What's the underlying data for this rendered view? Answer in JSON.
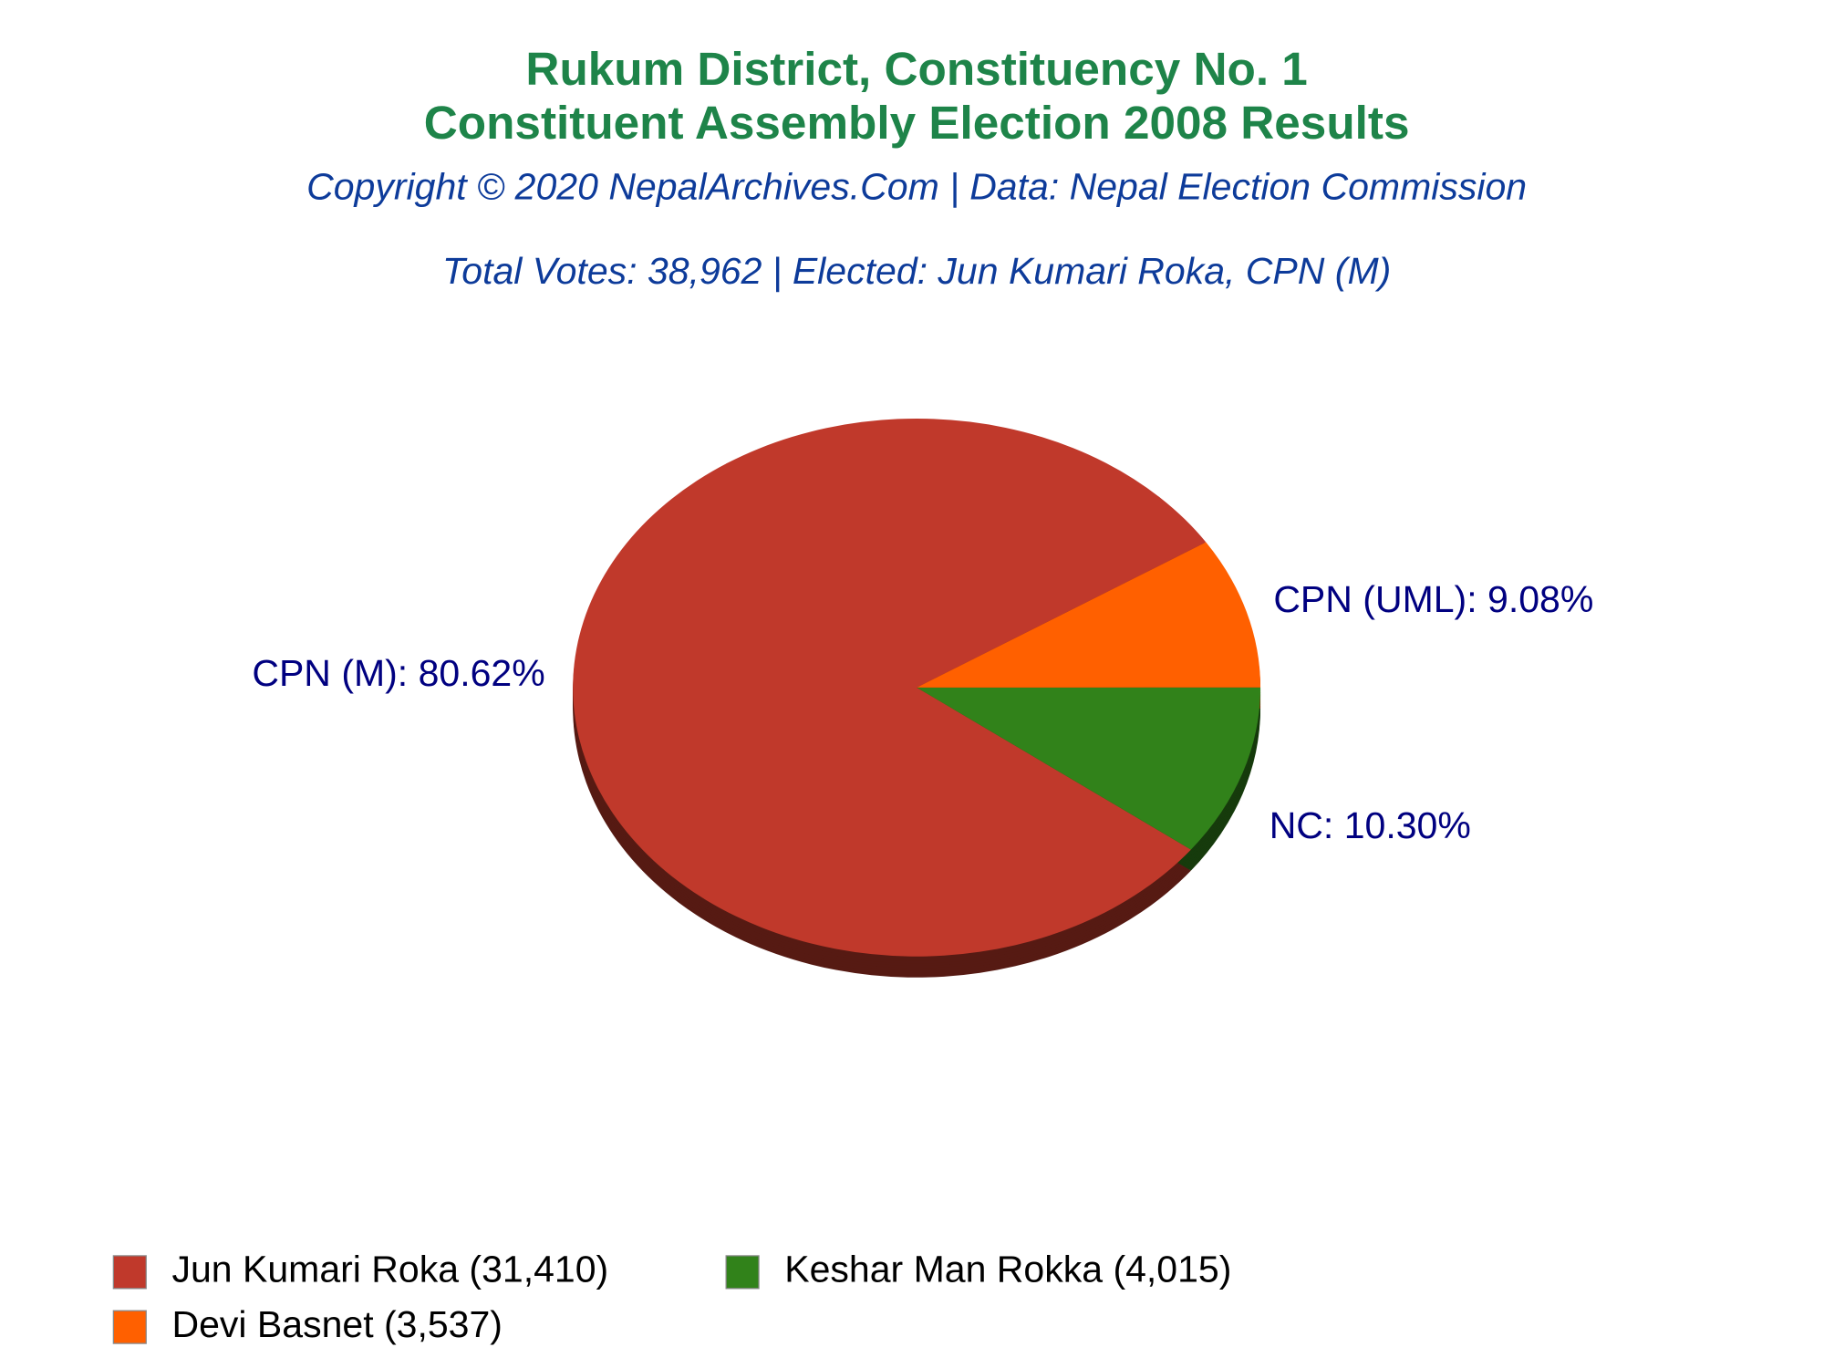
{
  "chart_data": {
    "type": "pie",
    "title": [
      "Rukum District, Constituency No. 1",
      "Constituent Assembly Election 2008 Results"
    ],
    "subtitle": [
      "Copyright © 2020 NepalArchives.Com | Data: Nepal Election Commission",
      "Total Votes: 38,962 | Elected: Jun Kumari Roka, CPN (M)"
    ],
    "categories": [
      "Jun Kumari Roka (31,410)",
      "Keshar Man Rokka (4,015)",
      "Devi Basnet (3,537)"
    ],
    "values": [
      80.62,
      10.3,
      9.08
    ],
    "value_labels": [
      "CPN (M): 80.62%",
      "NC: 10.30%",
      "CPN (UML): 9.08%"
    ],
    "colors": [
      "#c0392b",
      "#31821a",
      "#ff6000"
    ]
  }
}
